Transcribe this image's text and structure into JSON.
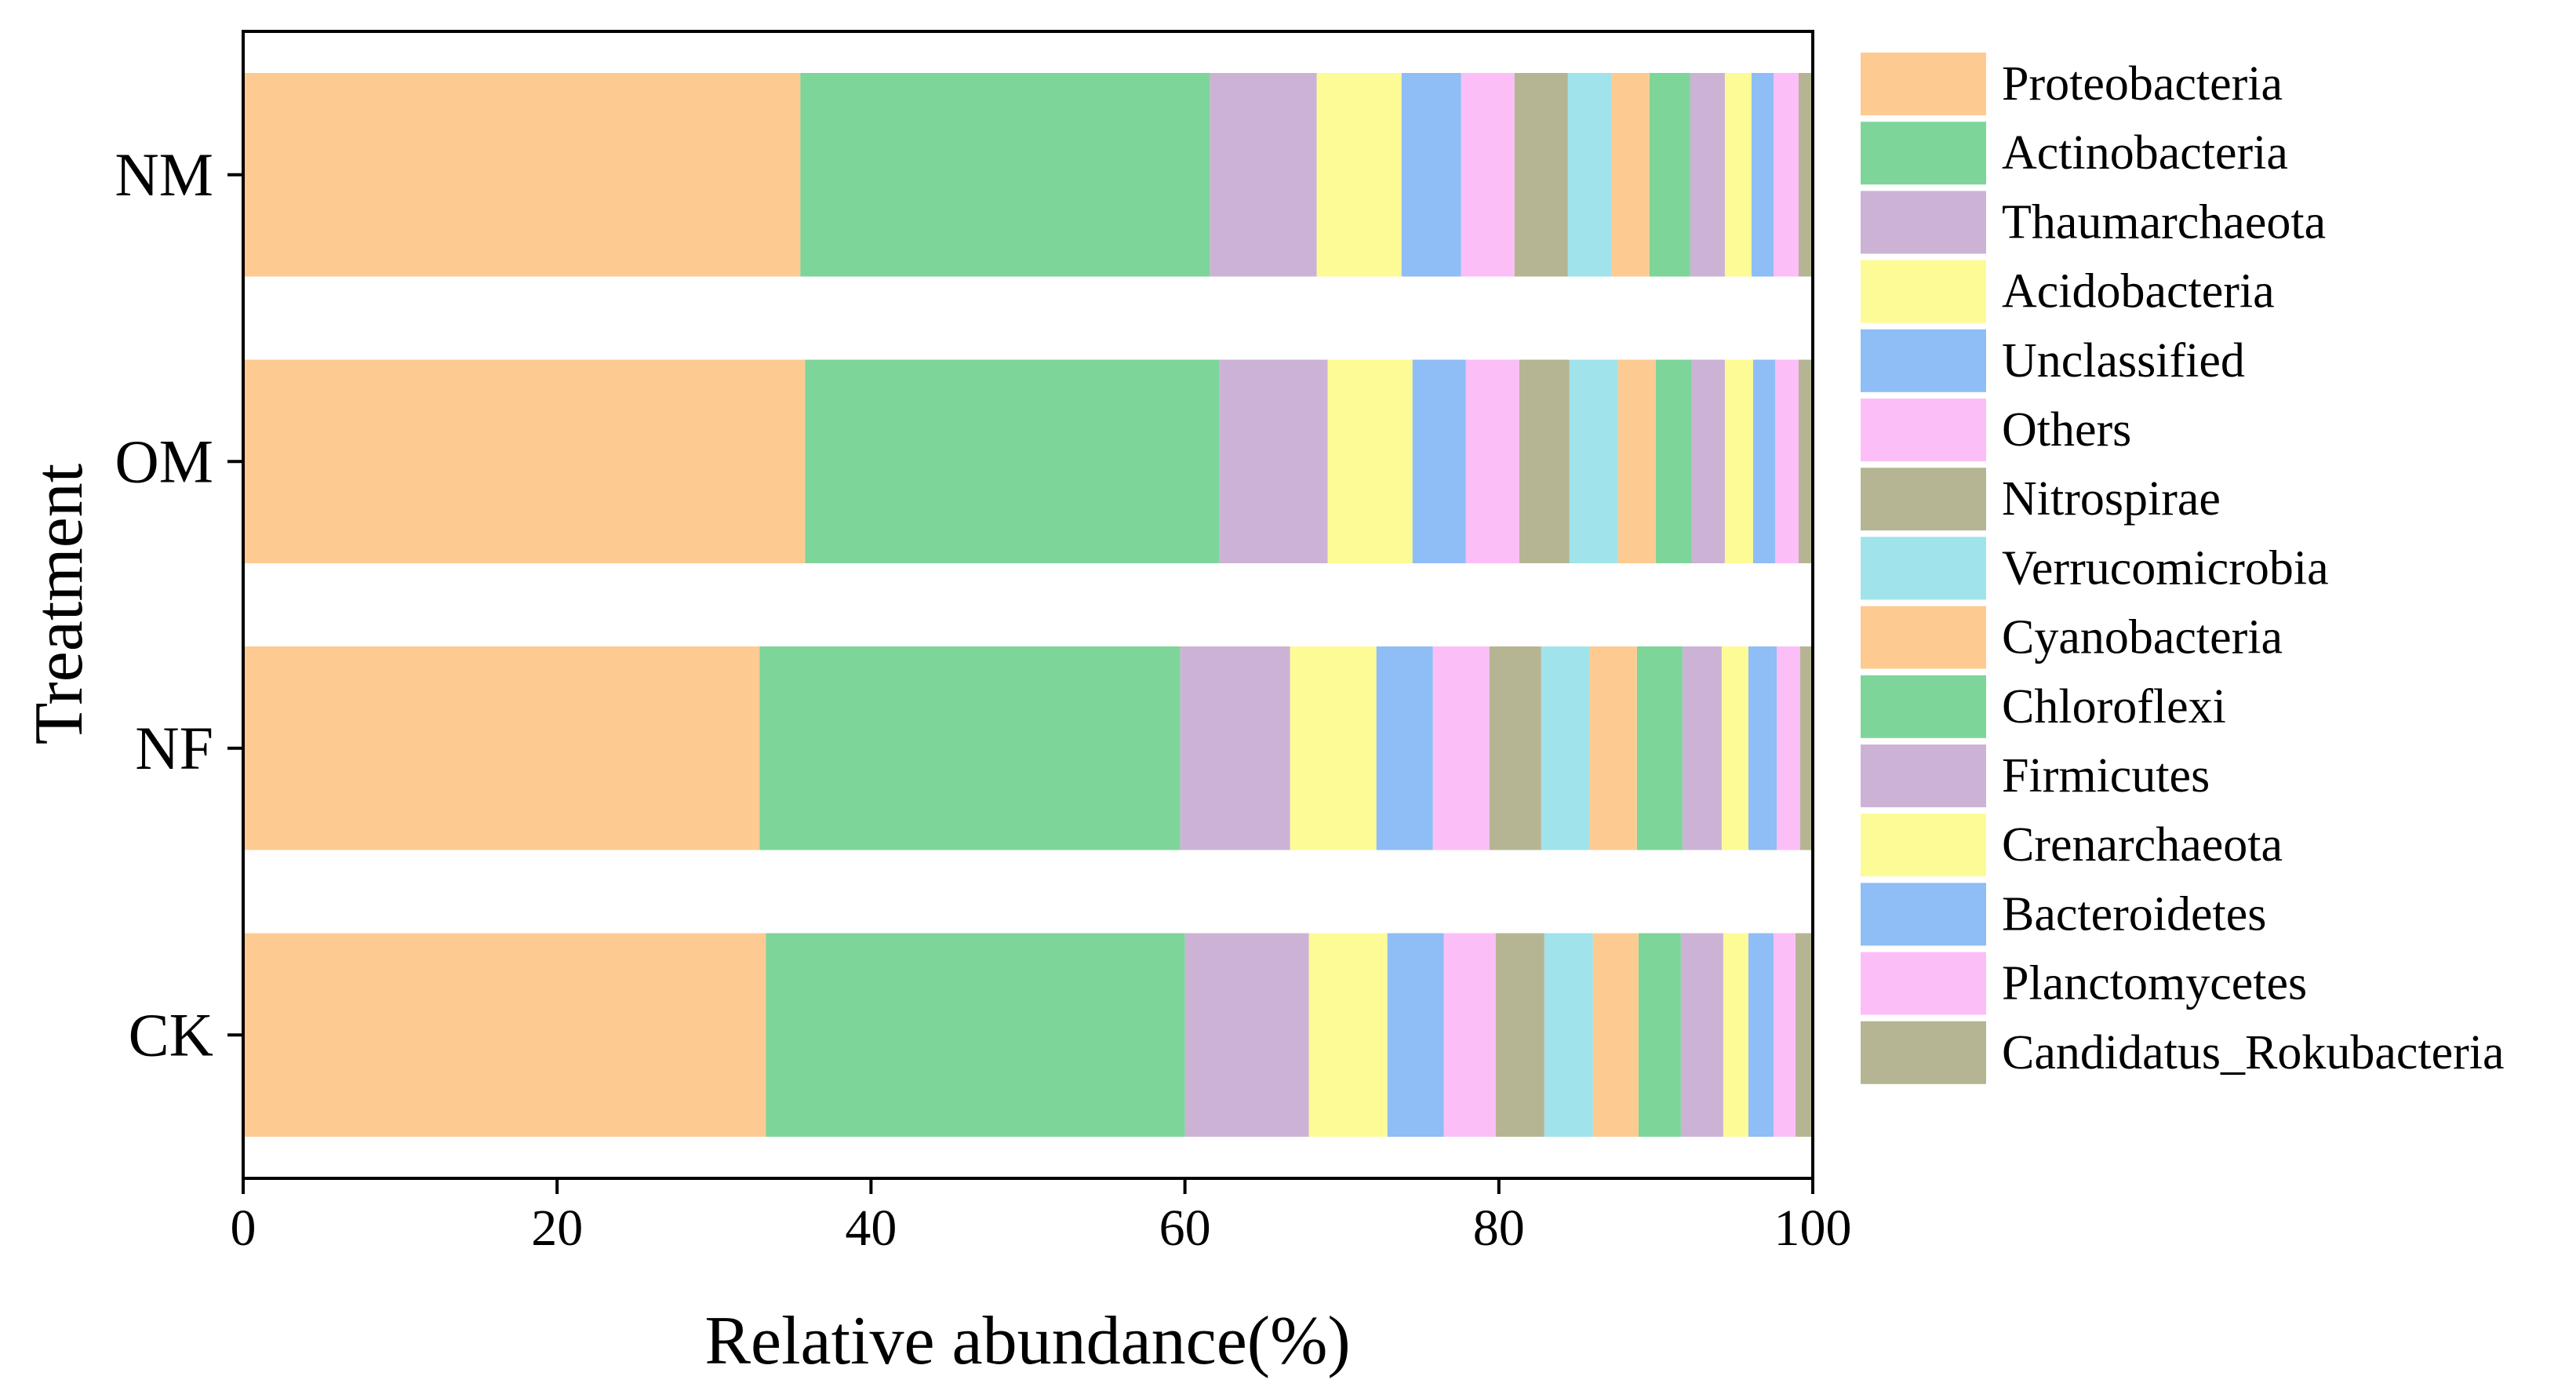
{
  "chart_data": {
    "type": "bar",
    "orientation": "horizontal",
    "stacked": true,
    "xlabel": "Relative abundance(%)",
    "ylabel": "Treatment",
    "xlim": [
      0,
      100
    ],
    "xticks": [
      "0",
      "20",
      "40",
      "60",
      "80",
      "100"
    ],
    "categories": [
      "NM",
      "OM",
      "NF",
      "CK"
    ],
    "legend_position": "right",
    "series": [
      {
        "name": "Proteobacteria",
        "color": "#FDCB92",
        "values": [
          35.5,
          35.8,
          32.9,
          33.3
        ]
      },
      {
        "name": "Actinobacteria",
        "color": "#7ED59A",
        "values": [
          26.1,
          26.4,
          26.8,
          26.7
        ]
      },
      {
        "name": "Thaumarchaeota",
        "color": "#CCB3D6",
        "values": [
          6.8,
          6.9,
          7.0,
          7.9
        ]
      },
      {
        "name": "Acidobacteria",
        "color": "#FDFB95",
        "values": [
          5.4,
          5.4,
          5.5,
          5.0
        ]
      },
      {
        "name": "Unclassified",
        "color": "#8FBDF5",
        "values": [
          3.8,
          3.4,
          3.6,
          3.6
        ]
      },
      {
        "name": "Others",
        "color": "#FCBEF7",
        "values": [
          3.4,
          3.4,
          3.6,
          3.3
        ]
      },
      {
        "name": "Nitrospirae",
        "color": "#B5B593",
        "values": [
          3.4,
          3.2,
          3.3,
          3.1
        ]
      },
      {
        "name": "Verrucomicrobia",
        "color": "#A0E3EB",
        "values": [
          2.8,
          3.1,
          3.1,
          3.1
        ]
      },
      {
        "name": "Cyanobacteria",
        "color": "#FDCB92",
        "values": [
          2.4,
          2.4,
          3.0,
          2.9
        ]
      },
      {
        "name": "Chloroflexi",
        "color": "#7ED59A",
        "values": [
          2.6,
          2.3,
          2.9,
          2.7
        ]
      },
      {
        "name": "Firmicutes",
        "color": "#CCB3D6",
        "values": [
          2.2,
          2.1,
          2.5,
          2.7
        ]
      },
      {
        "name": "Crenarchaeota",
        "color": "#FDFB95",
        "values": [
          1.7,
          1.8,
          1.7,
          1.6
        ]
      },
      {
        "name": "Bacteroidetes",
        "color": "#8FBDF5",
        "values": [
          1.4,
          1.4,
          1.8,
          1.6
        ]
      },
      {
        "name": "Planctomycetes",
        "color": "#FCBEF7",
        "values": [
          1.6,
          1.5,
          1.5,
          1.4
        ]
      },
      {
        "name": "Candidatus_Rokubacteria",
        "color": "#B5B593",
        "values": [
          0.9,
          0.9,
          0.8,
          1.1
        ]
      }
    ]
  }
}
